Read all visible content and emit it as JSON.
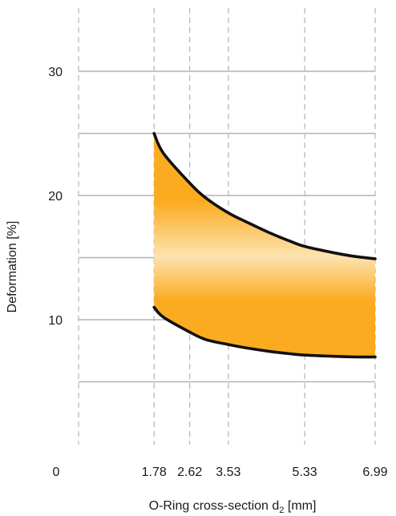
{
  "chart_data": {
    "type": "area",
    "title": "",
    "xlabel": {
      "main": "O-Ring cross-section d",
      "subscript": "2",
      "suffix": " [mm]"
    },
    "ylabel": "Deformation [%]",
    "xlim": [
      0,
      6.99
    ],
    "ylim": [
      0,
      35
    ],
    "x_ticks": [
      "0",
      "1.78",
      "2.62",
      "3.53",
      "5.33",
      "6.99"
    ],
    "x_tick_values": [
      0,
      1.78,
      2.62,
      3.53,
      5.33,
      6.99
    ],
    "y_ticks": [
      "10",
      "20",
      "30"
    ],
    "y_tick_values": [
      10,
      20,
      30
    ],
    "y_gridlines": [
      5,
      10,
      15,
      20,
      25,
      30
    ],
    "grid": true,
    "colors": {
      "fill_dark": "#fbab1f",
      "fill_light": "#fde3b0",
      "line": "#111111",
      "grid_h": "#b3b3b3",
      "grid_v": "#b3b3b3"
    },
    "series": [
      {
        "x": [
          1.78,
          2.0,
          2.62,
          3.0,
          3.53,
          4.0,
          4.5,
          5.0,
          5.33,
          6.0,
          6.5,
          6.99
        ],
        "y": [
          25.0,
          23.4,
          21.0,
          19.8,
          18.6,
          17.8,
          17.0,
          16.3,
          15.9,
          15.4,
          15.1,
          14.9
        ]
      },
      {
        "x": [
          1.78,
          2.0,
          2.62,
          3.0,
          3.53,
          4.0,
          4.5,
          5.0,
          5.33,
          6.0,
          6.5,
          6.99
        ],
        "y": [
          11.0,
          10.2,
          9.0,
          8.4,
          8.0,
          7.7,
          7.45,
          7.25,
          7.15,
          7.05,
          7.0,
          7.0
        ]
      }
    ]
  }
}
